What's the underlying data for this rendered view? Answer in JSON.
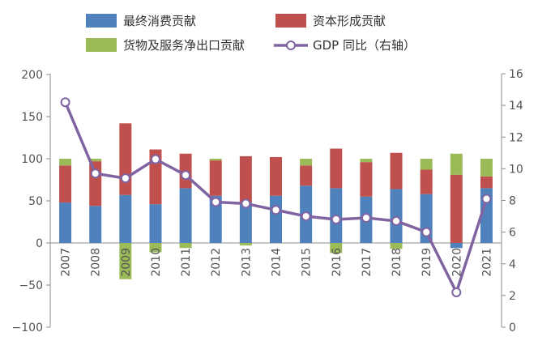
{
  "chart_data": {
    "type": "bar",
    "stacked": true,
    "categories": [
      "2007",
      "2008",
      "2009",
      "2010",
      "2011",
      "2012",
      "2013",
      "2014",
      "2015",
      "2016",
      "2017",
      "2018",
      "2019",
      "2020",
      "2021"
    ],
    "series": [
      {
        "name": "最终消费贡献",
        "color": "#4f81bd",
        "values": [
          48,
          44,
          57,
          46,
          65,
          56,
          48,
          56,
          68,
          65,
          55,
          64,
          58,
          -6,
          65
        ]
      },
      {
        "name": "资本形成贡献",
        "color": "#c0504d",
        "values": [
          44,
          53,
          85,
          65,
          41,
          42,
          55,
          46,
          24,
          47,
          41,
          43,
          29,
          81,
          14
        ]
      },
      {
        "name": "货物及服务净出口贡献",
        "color": "#9bbb59",
        "values": [
          8,
          3,
          -43,
          -11,
          -6,
          2,
          -3,
          0,
          8,
          -12,
          4,
          -7,
          13,
          25,
          21
        ]
      },
      {
        "name": "GDP 同比（右轴）",
        "color": "#8064a2",
        "axis": "right",
        "type": "line",
        "values": [
          14.2,
          9.7,
          9.4,
          10.6,
          9.6,
          7.9,
          7.8,
          7.4,
          7.0,
          6.8,
          6.9,
          6.7,
          6.0,
          2.2,
          8.1
        ]
      }
    ],
    "ylim_left": [
      -100,
      200
    ],
    "yticks_left": [
      "200",
      "150",
      "100",
      "50",
      "0",
      "−50",
      "−100"
    ],
    "ylim_right": [
      0,
      16
    ],
    "yticks_right": [
      "16",
      "14",
      "12",
      "10",
      "8",
      "6",
      "4",
      "2",
      "0"
    ],
    "legend_position": "top",
    "grid": false
  }
}
